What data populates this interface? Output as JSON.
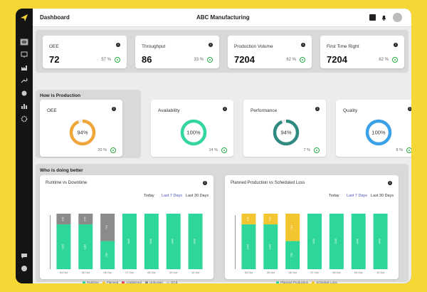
{
  "header": {
    "title": "Dashboard",
    "company": "ABC Manufacturing"
  },
  "kpis": [
    {
      "label": "OEE",
      "value": "72",
      "pct": "57 %"
    },
    {
      "label": "Throughput",
      "value": "86",
      "pct": "33 %"
    },
    {
      "label": "Production Volume",
      "value": "7204",
      "pct": "62 %"
    },
    {
      "label": "First Time Right",
      "value": "7204",
      "pct": "62 %"
    }
  ],
  "how_section": {
    "title": "How is Production"
  },
  "gauges": [
    {
      "label": "OEE",
      "value": "94%",
      "fill": 0.94,
      "change": "20 %",
      "color": "#f0a63a"
    },
    {
      "label": "Availability",
      "value": "100%",
      "fill": 1.0,
      "change": "14 %",
      "color": "#33d6a0"
    },
    {
      "label": "Performance",
      "value": "94%",
      "fill": 0.94,
      "change": "7 %",
      "color": "#2f8a80"
    },
    {
      "label": "Quality",
      "value": "100%",
      "fill": 1.0,
      "change": "8 %",
      "color": "#3aa0e8"
    }
  ],
  "better_section": {
    "title": "Who is doing better"
  },
  "time_ranges": [
    "Today",
    "Last 7 Days",
    "Last 30 Days"
  ],
  "colors": {
    "runtime": "#2fd69a",
    "planned": "#f2c531",
    "unplanned": "#e0475b",
    "unknown": "#8b8b8b",
    "ocb": "#c9c9c9",
    "accent": "#4b4fb8"
  },
  "chart_data": [
    {
      "type": "bar",
      "title": "Runtime vs Downtime",
      "categories": [
        "04 Oct",
        "05 Oct",
        "06 Oct",
        "07 Oct",
        "08 Oct",
        "09 Oct",
        "10 Oct"
      ],
      "ylim": [
        0,
        1440
      ],
      "series": [
        {
          "name": "Runtime",
          "values": [
            1162,
            1162,
            730,
            1440,
            1440,
            1440,
            1440
          ]
        },
        {
          "name": "Planned",
          "values": [
            0,
            0,
            0,
            0,
            0,
            0,
            0
          ]
        },
        {
          "name": "Unplanned",
          "values": [
            0,
            0,
            0,
            0,
            0,
            0,
            0
          ]
        },
        {
          "name": "Unknown",
          "values": [
            278,
            278,
            710,
            0,
            0,
            0,
            0
          ]
        },
        {
          "name": "OCB",
          "values": [
            0,
            0,
            0,
            0,
            0,
            0,
            0
          ]
        }
      ],
      "bar_labels": [
        [
          "1162",
          "278"
        ],
        [
          "1162",
          "278"
        ],
        [
          "730",
          "710"
        ],
        [
          "1440"
        ],
        [
          "1440"
        ],
        [
          "1440"
        ],
        [
          "1440"
        ]
      ]
    },
    {
      "type": "bar",
      "title": "Planned Production vs Scheduled Loss",
      "categories": [
        "04 Oct",
        "05 Oct",
        "06 Oct",
        "07 Oct",
        "08 Oct",
        "09 Oct",
        "10 Oct"
      ],
      "ylim": [
        0,
        1440
      ],
      "series": [
        {
          "name": "Planned Production",
          "values": [
            1162,
            1162,
            730,
            1440,
            1440,
            1440,
            1440
          ]
        },
        {
          "name": "Schedule Loss",
          "values": [
            278,
            278,
            710,
            0,
            0,
            0,
            0
          ]
        }
      ],
      "bar_labels": [
        [
          "1162",
          "278"
        ],
        [
          "1162",
          "278"
        ],
        [
          "730",
          "710"
        ],
        [
          "1440"
        ],
        [
          "1440"
        ],
        [
          "1440"
        ],
        [
          "1440"
        ]
      ]
    }
  ]
}
